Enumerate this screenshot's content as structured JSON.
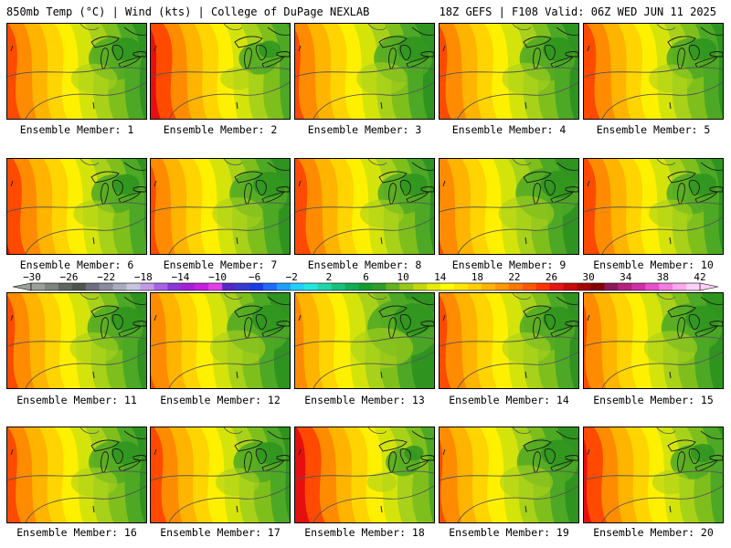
{
  "header": {
    "left": "850mb Temp (°C) | Wind (kts) | College of DuPage NEXLAB",
    "right": "18Z GEFS | F108 Valid: 06Z WED JUN 11 2025"
  },
  "panels": [
    {
      "label": "Ensemble Member: 1",
      "warm": 0.55
    },
    {
      "label": "Ensemble Member: 2",
      "warm": 0.8
    },
    {
      "label": "Ensemble Member: 3",
      "warm": 0.45
    },
    {
      "label": "Ensemble Member: 4",
      "warm": 0.5
    },
    {
      "label": "Ensemble Member: 5",
      "warm": 0.6
    },
    {
      "label": "Ensemble Member: 6",
      "warm": 0.65
    },
    {
      "label": "Ensemble Member: 7",
      "warm": 0.45
    },
    {
      "label": "Ensemble Member: 8",
      "warm": 0.6
    },
    {
      "label": "Ensemble Member: 9",
      "warm": 0.35
    },
    {
      "label": "Ensemble Member: 10",
      "warm": 0.6
    },
    {
      "label": "Ensemble Member: 11",
      "warm": 0.5
    },
    {
      "label": "Ensemble Member: 12",
      "warm": 0.35
    },
    {
      "label": "Ensemble Member: 13",
      "warm": 0.2
    },
    {
      "label": "Ensemble Member: 14",
      "warm": 0.5
    },
    {
      "label": "Ensemble Member: 15",
      "warm": 0.4
    },
    {
      "label": "Ensemble Member: 16",
      "warm": 0.55
    },
    {
      "label": "Ensemble Member: 17",
      "warm": 0.6
    },
    {
      "label": "Ensemble Member: 18",
      "warm": 0.9
    },
    {
      "label": "Ensemble Member: 19",
      "warm": 0.4
    },
    {
      "label": "Ensemble Member: 20",
      "warm": 0.75
    }
  ],
  "colorbar": {
    "labels": [
      "−30",
      "−26",
      "−22",
      "−18",
      "−14",
      "−10",
      "−6",
      "−2",
      "2",
      "6",
      "10",
      "14",
      "18",
      "22",
      "26",
      "30",
      "34",
      "38",
      "42"
    ],
    "colors": [
      "#9aa09a",
      "#7d857d",
      "#5f685f",
      "#4d564d",
      "#6f6f7f",
      "#8c8ca0",
      "#aaaac0",
      "#c7c7dc",
      "#c39ae6",
      "#a763e6",
      "#8a37d6",
      "#a51fd6",
      "#c81fe0",
      "#e53fe8",
      "#5527c8",
      "#3a3ad0",
      "#1c3de6",
      "#1f6bff",
      "#1fa0ff",
      "#22d0ff",
      "#22e6e0",
      "#1fd6a8",
      "#17c27a",
      "#11ad54",
      "#139d30",
      "#2e9d2a",
      "#64b21f",
      "#98c81a",
      "#c2d90f",
      "#e8ec05",
      "#ffff00",
      "#ffe600",
      "#ffd000",
      "#ffb400",
      "#ff9800",
      "#ff7800",
      "#ff5a00",
      "#ff3300",
      "#e61515",
      "#c80a0a",
      "#a50505",
      "#850303",
      "#8c1a5a",
      "#b5217f",
      "#d12fa6",
      "#e84fca",
      "#f57be0",
      "#fba8ee",
      "#ffd0f8"
    ]
  }
}
